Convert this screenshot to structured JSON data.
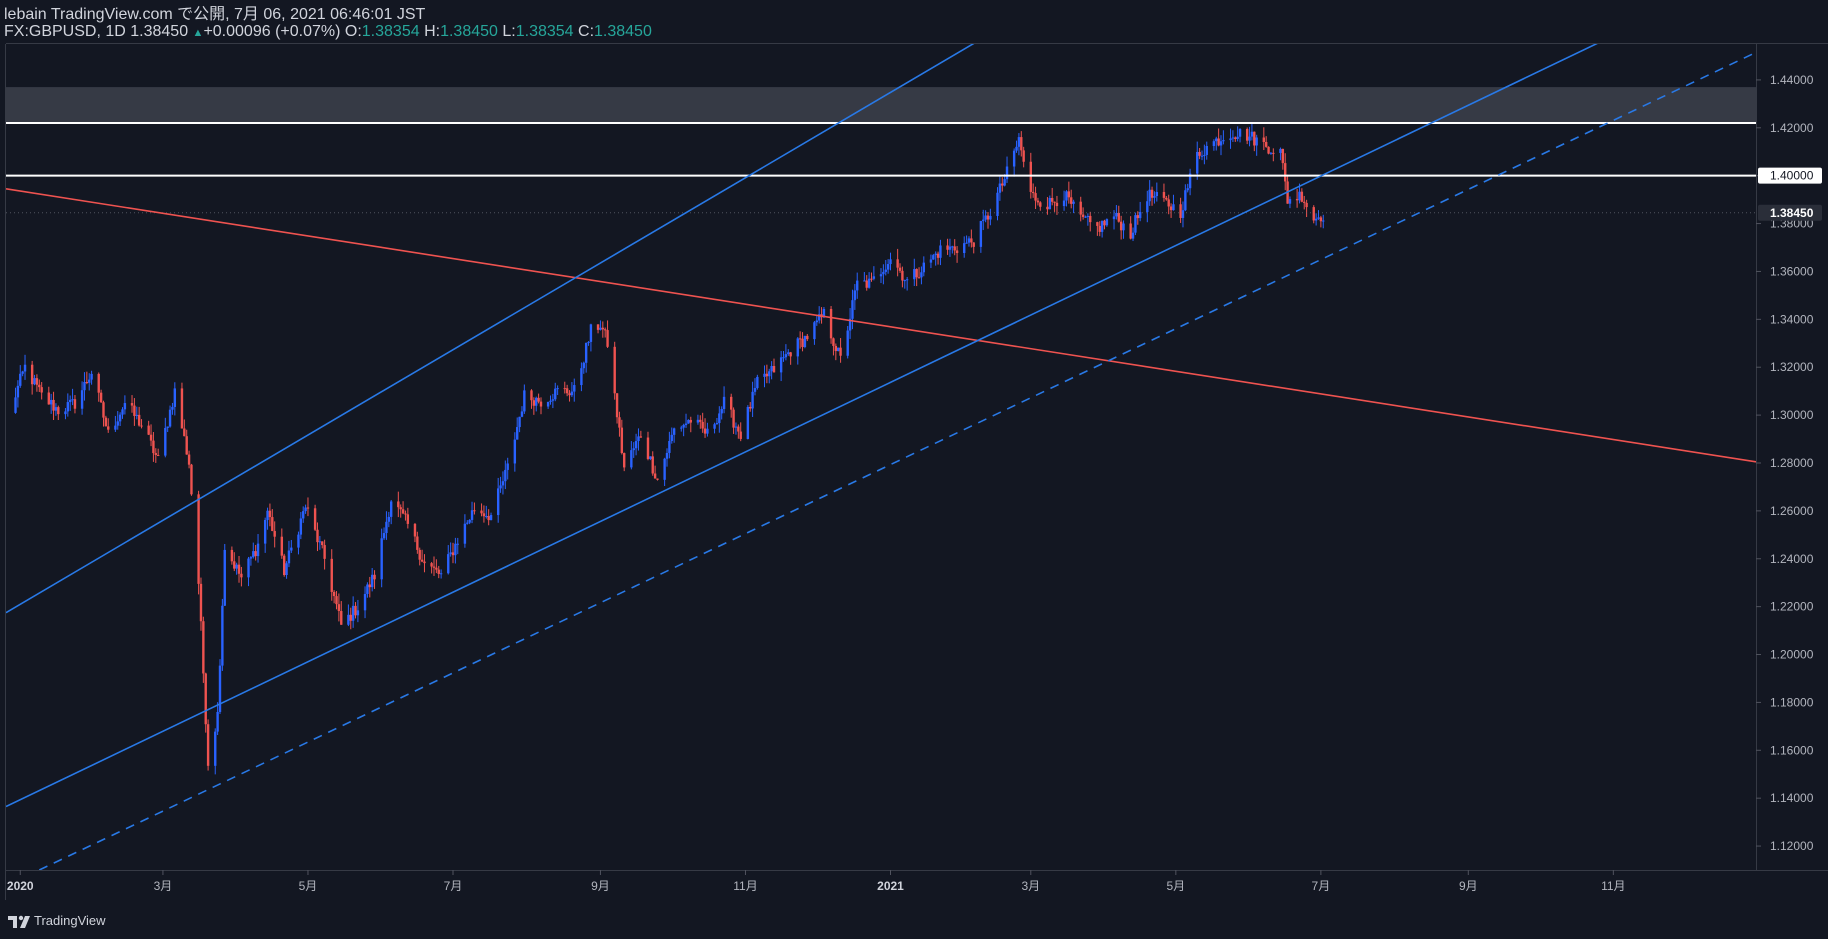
{
  "header": {
    "publisher": "lebain TradingView.com で公開, 7月 06, 2021 06:46:01 JST",
    "symbol": "FX:GBPUSD, 1D 1.38450",
    "change": "+0.00096 (+0.07%)",
    "open_label": "O:",
    "open": "1.38354",
    "high_label": "H:",
    "high": "1.38450",
    "low_label": "L:",
    "low": "1.38354",
    "close_label": "C:",
    "close": "1.38450"
  },
  "footer": {
    "brand": "TradingView"
  },
  "colors": {
    "background": "#131722",
    "up": "#2962ff",
    "down": "#ef5350",
    "channel": "#2979e6",
    "resistance": "#ffffff",
    "trend": "#ef5350",
    "zone": "#363a45"
  },
  "chart_data": {
    "type": "candlestick",
    "symbol": "FX:GBPUSD",
    "interval": "1D",
    "ylim": [
      1.11,
      1.455
    ],
    "yticks": [
      "1.12000",
      "1.14000",
      "1.16000",
      "1.18000",
      "1.20000",
      "1.22000",
      "1.24000",
      "1.26000",
      "1.28000",
      "1.30000",
      "1.32000",
      "1.34000",
      "1.36000",
      "1.38000",
      "1.40000",
      "1.42000",
      "1.44000"
    ],
    "price_labels": [
      {
        "label": "1.40000",
        "value": 1.4,
        "style": "white"
      },
      {
        "label": "1.38450",
        "value": 1.3845,
        "style": "current"
      }
    ],
    "x_ticks": [
      {
        "label": "2020",
        "date": "2020-01-01"
      },
      {
        "label": "3月",
        "date": "2020-03-01"
      },
      {
        "label": "5月",
        "date": "2020-05-01"
      },
      {
        "label": "7月",
        "date": "2020-07-01"
      },
      {
        "label": "9月",
        "date": "2020-09-01"
      },
      {
        "label": "11月",
        "date": "2020-11-01"
      },
      {
        "label": "2021",
        "date": "2021-01-01"
      },
      {
        "label": "3月",
        "date": "2021-03-01"
      },
      {
        "label": "5月",
        "date": "2021-05-01"
      },
      {
        "label": "7月",
        "date": "2021-07-01"
      },
      {
        "label": "9月",
        "date": "2021-09-01"
      },
      {
        "label": "11月",
        "date": "2021-11-01"
      }
    ],
    "x_range": [
      "2019-12-26",
      "2021-12-31"
    ],
    "price_path": [
      [
        "2019-12-27",
        1.3
      ],
      [
        "2020-01-03",
        1.32
      ],
      [
        "2020-01-10",
        1.308
      ],
      [
        "2020-01-17",
        1.302
      ],
      [
        "2020-01-24",
        1.305
      ],
      [
        "2020-01-31",
        1.318
      ],
      [
        "2020-02-07",
        1.292
      ],
      [
        "2020-02-14",
        1.305
      ],
      [
        "2020-02-21",
        1.296
      ],
      [
        "2020-02-28",
        1.281
      ],
      [
        "2020-03-06",
        1.31
      ],
      [
        "2020-03-12",
        1.28
      ],
      [
        "2020-03-16",
        1.23
      ],
      [
        "2020-03-20",
        1.155
      ],
      [
        "2020-03-24",
        1.175
      ],
      [
        "2020-03-27",
        1.245
      ],
      [
        "2020-04-03",
        1.232
      ],
      [
        "2020-04-10",
        1.246
      ],
      [
        "2020-04-14",
        1.26
      ],
      [
        "2020-04-21",
        1.235
      ],
      [
        "2020-04-30",
        1.262
      ],
      [
        "2020-05-08",
        1.24
      ],
      [
        "2020-05-15",
        1.212
      ],
      [
        "2020-05-22",
        1.22
      ],
      [
        "2020-05-29",
        1.233
      ],
      [
        "2020-06-05",
        1.265
      ],
      [
        "2020-06-12",
        1.254
      ],
      [
        "2020-06-19",
        1.238
      ],
      [
        "2020-06-26",
        1.233
      ],
      [
        "2020-07-03",
        1.248
      ],
      [
        "2020-07-10",
        1.261
      ],
      [
        "2020-07-17",
        1.258
      ],
      [
        "2020-07-24",
        1.278
      ],
      [
        "2020-07-31",
        1.308
      ],
      [
        "2020-08-07",
        1.306
      ],
      [
        "2020-08-14",
        1.31
      ],
      [
        "2020-08-21",
        1.31
      ],
      [
        "2020-08-28",
        1.335
      ],
      [
        "2020-09-01",
        1.338
      ],
      [
        "2020-09-04",
        1.33
      ],
      [
        "2020-09-11",
        1.278
      ],
      [
        "2020-09-18",
        1.292
      ],
      [
        "2020-09-25",
        1.273
      ],
      [
        "2020-10-02",
        1.294
      ],
      [
        "2020-10-09",
        1.298
      ],
      [
        "2020-10-16",
        1.292
      ],
      [
        "2020-10-23",
        1.305
      ],
      [
        "2020-10-30",
        1.292
      ],
      [
        "2020-11-06",
        1.313
      ],
      [
        "2020-11-13",
        1.319
      ],
      [
        "2020-11-20",
        1.327
      ],
      [
        "2020-11-27",
        1.333
      ],
      [
        "2020-12-04",
        1.342
      ],
      [
        "2020-12-11",
        1.323
      ],
      [
        "2020-12-18",
        1.355
      ],
      [
        "2020-12-24",
        1.355
      ],
      [
        "2021-01-01",
        1.366
      ],
      [
        "2021-01-08",
        1.356
      ],
      [
        "2021-01-15",
        1.362
      ],
      [
        "2021-01-22",
        1.369
      ],
      [
        "2021-01-29",
        1.37
      ],
      [
        "2021-02-05",
        1.373
      ],
      [
        "2021-02-12",
        1.385
      ],
      [
        "2021-02-19",
        1.401
      ],
      [
        "2021-02-24",
        1.415
      ],
      [
        "2021-03-01",
        1.392
      ],
      [
        "2021-03-08",
        1.388
      ],
      [
        "2021-03-15",
        1.392
      ],
      [
        "2021-03-22",
        1.382
      ],
      [
        "2021-03-29",
        1.378
      ],
      [
        "2021-04-05",
        1.383
      ],
      [
        "2021-04-12",
        1.376
      ],
      [
        "2021-04-19",
        1.392
      ],
      [
        "2021-04-26",
        1.389
      ],
      [
        "2021-05-03",
        1.385
      ],
      [
        "2021-05-10",
        1.409
      ],
      [
        "2021-05-17",
        1.414
      ],
      [
        "2021-05-24",
        1.418
      ],
      [
        "2021-05-31",
        1.417
      ],
      [
        "2021-06-07",
        1.413
      ],
      [
        "2021-06-14",
        1.41
      ],
      [
        "2021-06-17",
        1.39
      ],
      [
        "2021-06-23",
        1.392
      ],
      [
        "2021-06-28",
        1.382
      ],
      [
        "2021-07-02",
        1.384
      ]
    ],
    "drawings": [
      {
        "name": "resistance-1.422",
        "kind": "hline",
        "value": 1.422,
        "color": "#ffffff"
      },
      {
        "name": "resistance-1.400",
        "kind": "hline",
        "value": 1.4,
        "color": "#ffffff"
      },
      {
        "name": "zone-1.422-1.437",
        "kind": "zone",
        "from": 1.422,
        "to": 1.437,
        "color": "#363a45"
      },
      {
        "name": "current-price-line",
        "kind": "hline-dotted",
        "value": 1.3845,
        "color": "#787b86"
      },
      {
        "name": "falling-trendline",
        "kind": "segment",
        "p1": [
          "2019-12-26",
          1.3945
        ],
        "p2": [
          "2021-12-31",
          1.2805
        ],
        "color": "#ef5350",
        "dash": false
      },
      {
        "name": "channel-upper",
        "kind": "segment",
        "p1": [
          "2019-12-26",
          1.2175
        ],
        "p2": [
          "2021-03-16",
          1.478
        ],
        "color": "#2979e6",
        "dash": false
      },
      {
        "name": "channel-lower",
        "kind": "segment",
        "p1": [
          "2019-12-26",
          1.1365
        ],
        "p2": [
          "2021-12-12",
          1.478
        ],
        "color": "#2979e6",
        "dash": false
      },
      {
        "name": "channel-lower-dashed",
        "kind": "segment",
        "p1": [
          "2020-01-09",
          1.11
        ],
        "p2": [
          "2021-12-31",
          1.4515
        ],
        "color": "#2979e6",
        "dash": true
      }
    ]
  }
}
